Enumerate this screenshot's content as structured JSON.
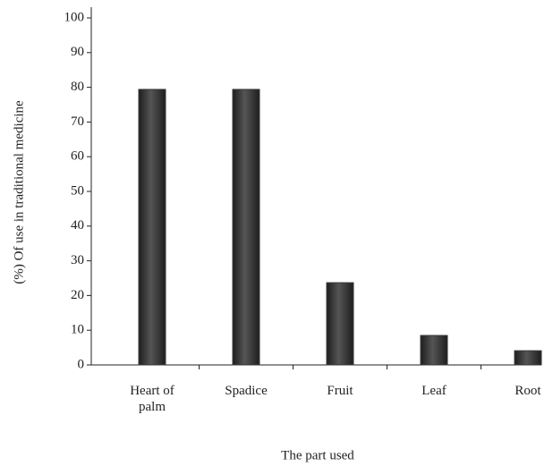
{
  "chart_data": {
    "type": "bar",
    "x_label": "The part used",
    "y_label": "(%) Of use in traditional medicine",
    "categories": [
      "Heart of palm",
      "Spadice",
      "Fruit",
      "Leaf",
      "Root"
    ],
    "values": [
      79.4,
      79.4,
      23.7,
      8.5,
      4.1
    ],
    "color": "#3a3a3a",
    "ylim": [
      0,
      100
    ],
    "yticks": [
      0,
      10,
      20,
      30,
      40,
      50,
      60,
      70,
      80,
      90,
      100
    ],
    "grid": false
  }
}
